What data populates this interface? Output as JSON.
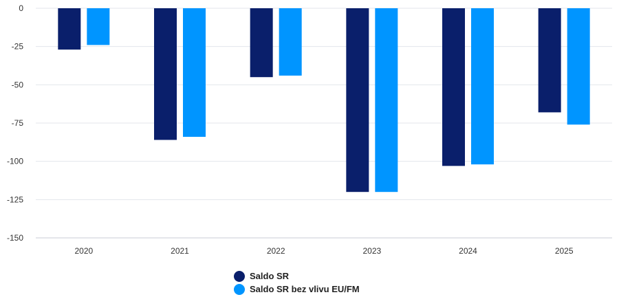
{
  "chart_data": {
    "type": "bar",
    "categories": [
      "2020",
      "2021",
      "2022",
      "2023",
      "2024",
      "2025"
    ],
    "series": [
      {
        "name": "Saldo SR",
        "color": "#0a1f6b",
        "values": [
          -27,
          -86,
          -45,
          -120,
          -103,
          -68
        ]
      },
      {
        "name": "Saldo SR bez vlivu EU/FM",
        "color": "#0095ff",
        "values": [
          -24,
          -84,
          -44,
          -120,
          -102,
          -76
        ]
      }
    ],
    "ylim": [
      -150,
      0
    ],
    "yticks": [
      0,
      -25,
      -50,
      -75,
      -100,
      -125,
      -150
    ],
    "ytick_labels": [
      "0",
      "-25",
      "-50",
      "-75",
      "-100",
      "-125",
      "-150"
    ],
    "grid": true,
    "legend": "bottom-center"
  }
}
